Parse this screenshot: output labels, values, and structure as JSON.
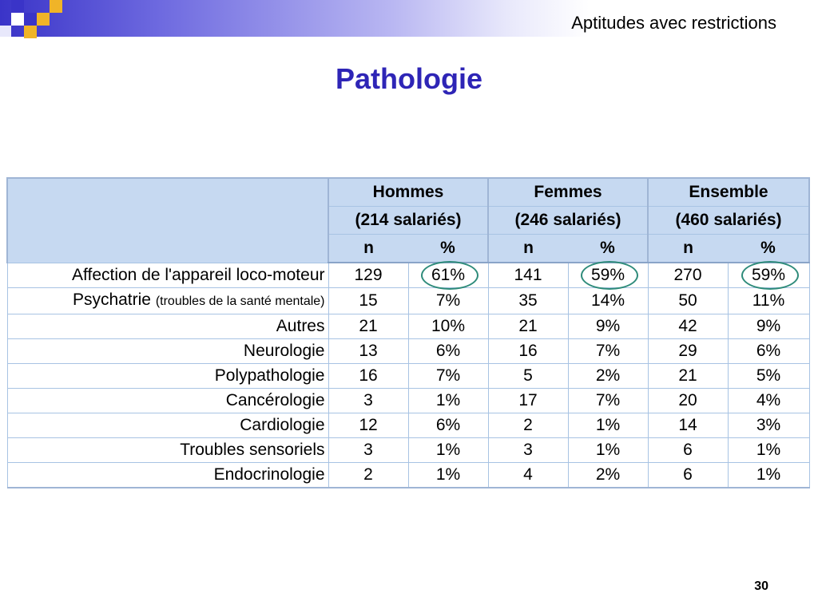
{
  "header": {
    "title": "Aptitudes avec restrictions"
  },
  "page_title": "Pathologie",
  "table": {
    "groups": [
      {
        "name": "Hommes",
        "sub": "(214 salariés)"
      },
      {
        "name": "Femmes",
        "sub": "(246 salariés)"
      },
      {
        "name": "Ensemble",
        "sub": "(460 salariés)"
      }
    ],
    "col_n": "n",
    "col_pct": "%",
    "rows": [
      {
        "label": "Affection de l'appareil loco-moteur",
        "note": "",
        "h_n": "129",
        "h_p": "61%",
        "f_n": "141",
        "f_p": "59%",
        "e_n": "270",
        "e_p": "59%"
      },
      {
        "label": "Psychatrie",
        "note": "(troubles de la santé mentale)",
        "h_n": "15",
        "h_p": "7%",
        "f_n": "35",
        "f_p": "14%",
        "e_n": "50",
        "e_p": "11%"
      },
      {
        "label": "Autres",
        "note": "",
        "h_n": "21",
        "h_p": "10%",
        "f_n": "21",
        "f_p": "9%",
        "e_n": "42",
        "e_p": "9%"
      },
      {
        "label": "Neurologie",
        "note": "",
        "h_n": "13",
        "h_p": "6%",
        "f_n": "16",
        "f_p": "7%",
        "e_n": "29",
        "e_p": "6%"
      },
      {
        "label": "Polypathologie",
        "note": "",
        "h_n": "16",
        "h_p": "7%",
        "f_n": "5",
        "f_p": "2%",
        "e_n": "21",
        "e_p": "5%"
      },
      {
        "label": "Cancérologie",
        "note": "",
        "h_n": "3",
        "h_p": "1%",
        "f_n": "17",
        "f_p": "7%",
        "e_n": "20",
        "e_p": "4%"
      },
      {
        "label": "Cardiologie",
        "note": "",
        "h_n": "12",
        "h_p": "6%",
        "f_n": "2",
        "f_p": "1%",
        "e_n": "14",
        "e_p": "3%"
      },
      {
        "label": "Troubles sensoriels",
        "note": "",
        "h_n": "3",
        "h_p": "1%",
        "f_n": "3",
        "f_p": "1%",
        "e_n": "6",
        "e_p": "1%"
      },
      {
        "label": "Endocrinologie",
        "note": "",
        "h_n": "2",
        "h_p": "1%",
        "f_n": "4",
        "f_p": "2%",
        "e_n": "6",
        "e_p": "1%"
      }
    ]
  },
  "page_number": "30",
  "colors": {
    "title": "#2e25b6",
    "header_fill": "#c6d9f1",
    "circle": "#2e8b7a",
    "square_blue": "#3a34c8",
    "square_gold": "#f0b428"
  }
}
